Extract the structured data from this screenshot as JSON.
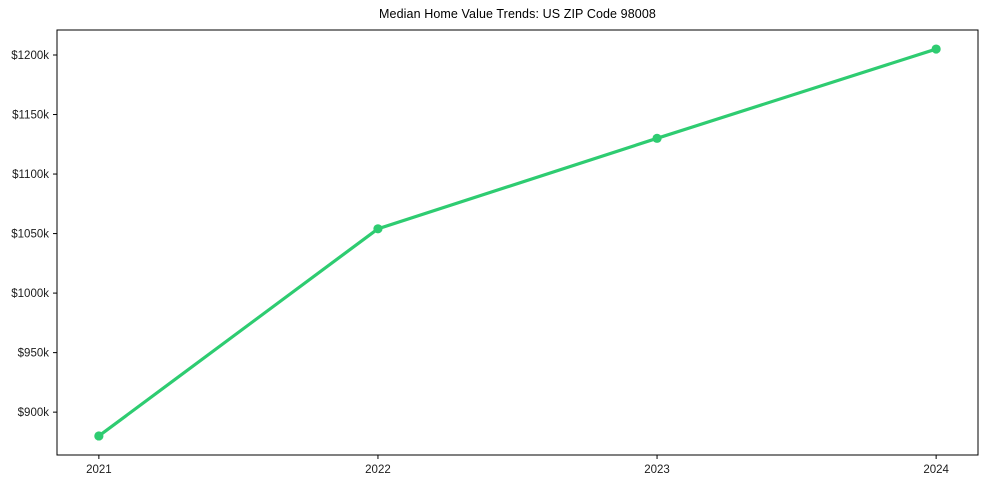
{
  "chart_data": {
    "type": "line",
    "title": "Median Home Value Trends: US ZIP Code 98008",
    "x": [
      2021,
      2022,
      2023,
      2024
    ],
    "x_tick_labels": [
      "2021",
      "2022",
      "2023",
      "2024"
    ],
    "series": [
      {
        "name": "Median Home Value",
        "values": [
          880,
          1054,
          1130,
          1205
        ],
        "unit": "USD thousands",
        "color": "#2ecc71"
      }
    ],
    "y_ticks": [
      900,
      950,
      1000,
      1050,
      1100,
      1150,
      1200
    ],
    "y_tick_labels": [
      "$900k",
      "$950k",
      "$1000k",
      "$1050k",
      "$1100k",
      "$1150k",
      "$1200k"
    ],
    "xlim": [
      2020.85,
      2024.15
    ],
    "ylim": [
      864,
      1221
    ],
    "xlabel": "",
    "ylabel": "",
    "grid": false,
    "legend": "none",
    "marker": "circle",
    "line_width": 3.2,
    "marker_radius": 4.6,
    "background_color": "#ffffff",
    "axis_color": "#000000",
    "text_color": "#1c1c1c"
  }
}
